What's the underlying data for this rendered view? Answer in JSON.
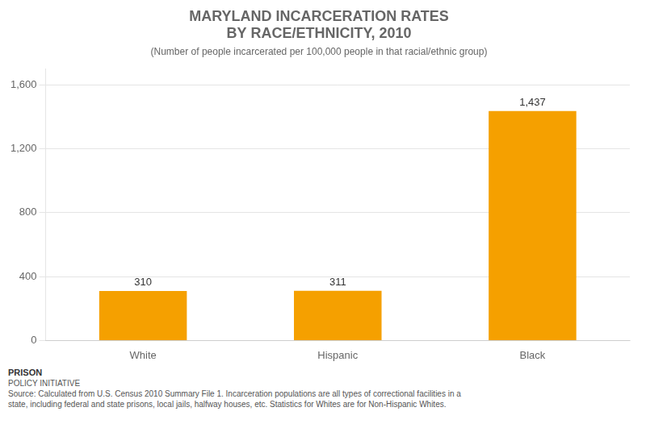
{
  "chart_data": {
    "type": "bar",
    "title": [
      "MARYLAND INCARCERATION RATES",
      "BY RACE/ETHNICITY, 2010"
    ],
    "subtitle": "(Number of people incarcerated per 100,000 people in that racial/ethnic group)",
    "categories": [
      "White",
      "Hispanic",
      "Black"
    ],
    "values": [
      310,
      311,
      1437
    ],
    "value_labels": [
      "310",
      "311",
      "1,437"
    ],
    "color": "#F5A000",
    "ylim": [
      0,
      1700
    ],
    "yticks": [
      0,
      400,
      800,
      {
        "value": 1200,
        "label": "1,200"
      },
      {
        "value": 1600,
        "label": "1,600"
      }
    ],
    "grid": true,
    "data_labels": true,
    "annotations": [
      "PRISON",
      "POLICY INITIATIVE",
      "Source: Calculated from U.S. Census 2010 Summary File 1. Incarceration populations are all types of correctional facilities in a",
      "state, including federal and state prisons, local jails, halfway houses, etc. Statistics for Whites are for Non-Hispanic Whites."
    ]
  }
}
